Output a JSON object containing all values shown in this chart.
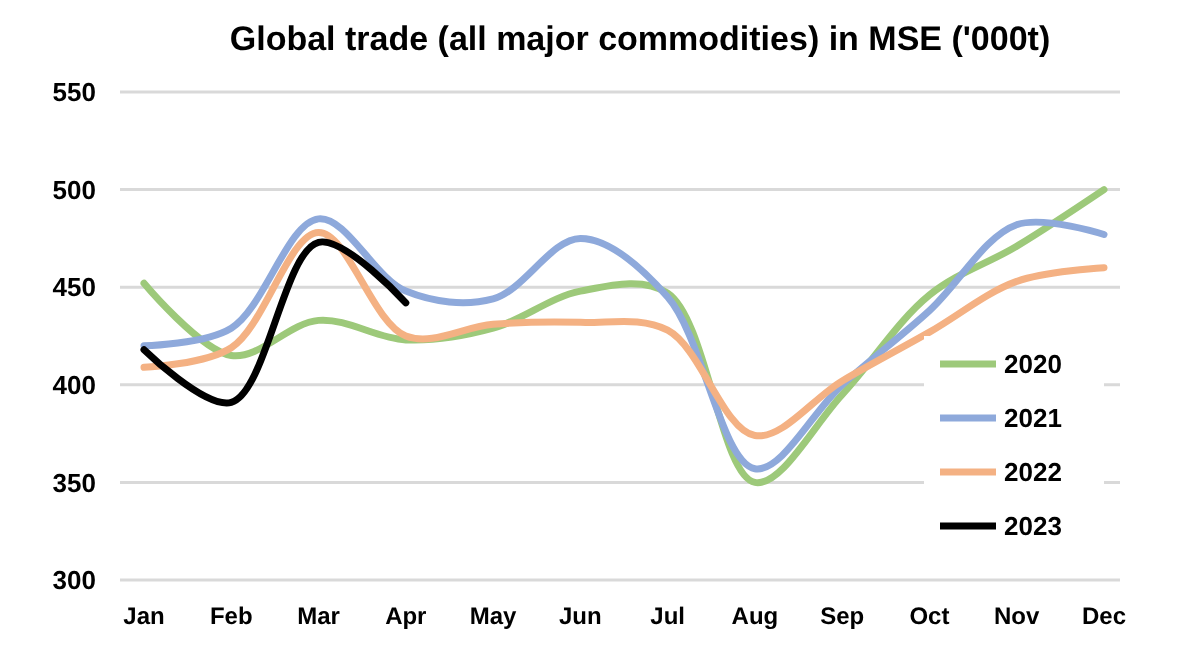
{
  "chart_data": {
    "type": "line",
    "title": "Global trade (all major commodities) in MSE ('000t)",
    "categories": [
      "Jan",
      "Feb",
      "Mar",
      "Apr",
      "May",
      "Jun",
      "Jul",
      "Aug",
      "Sep",
      "Oct",
      "Nov",
      "Dec"
    ],
    "series": [
      {
        "name": "2020",
        "color": "#9dc97a",
        "values": [
          452,
          415,
          433,
          423,
          429,
          448,
          447,
          350,
          395,
          446,
          471,
          500
        ]
      },
      {
        "name": "2021",
        "color": "#8ea9db",
        "values": [
          420,
          429,
          485,
          448,
          444,
          475,
          445,
          357,
          400,
          438,
          482,
          477
        ]
      },
      {
        "name": "2022",
        "color": "#f4b183",
        "values": [
          409,
          419,
          478,
          425,
          431,
          432,
          428,
          374,
          402,
          427,
          453,
          460
        ]
      },
      {
        "name": "2023",
        "color": "#000000",
        "values": [
          418,
          391,
          473,
          442,
          null,
          null,
          null,
          null,
          null,
          null,
          null,
          null
        ]
      }
    ],
    "ylim": [
      300,
      550
    ],
    "yticks": [
      300,
      350,
      400,
      450,
      500,
      550
    ],
    "grid": "y",
    "legend": "right",
    "line_style": "solid",
    "marker": "none"
  }
}
